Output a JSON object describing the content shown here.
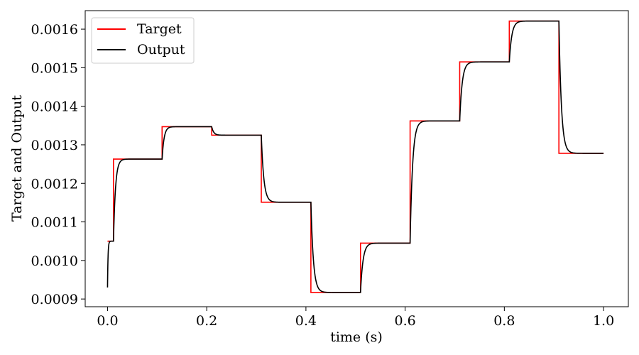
{
  "chart_data": {
    "type": "line",
    "xlabel": "time (s)",
    "ylabel": "Target and Output",
    "xlim": [
      -0.045,
      1.05
    ],
    "ylim": [
      0.00088,
      0.001648
    ],
    "xticks": [
      0.0,
      0.2,
      0.4,
      0.6,
      0.8,
      1.0
    ],
    "xtick_labels": [
      "0.0",
      "0.2",
      "0.4",
      "0.6",
      "0.8",
      "1.0"
    ],
    "yticks": [
      0.0009,
      0.001,
      0.0011,
      0.0012,
      0.0013,
      0.0014,
      0.0015,
      0.0016
    ],
    "ytick_labels": [
      "0.0009",
      "0.0010",
      "0.0011",
      "0.0012",
      "0.0013",
      "0.0014",
      "0.0015",
      "0.0016"
    ],
    "grid": false,
    "legend_position": "top-left",
    "series": [
      {
        "name": "Target",
        "color": "#ff0000",
        "style": "step",
        "x": [
          0.0,
          0.012,
          0.11,
          0.21,
          0.31,
          0.41,
          0.51,
          0.61,
          0.71,
          0.81,
          0.91,
          1.0
        ],
        "values": [
          0.00105,
          0.001263,
          0.001347,
          0.001325,
          0.001151,
          0.000917,
          0.001045,
          0.001362,
          0.001515,
          0.001621,
          0.001278,
          0.001278
        ]
      },
      {
        "name": "Output",
        "color": "#000000",
        "style": "response",
        "start": 0.00093,
        "steps": [
          {
            "t": 0.0,
            "v": 0.00105,
            "tau": 0.001
          },
          {
            "t": 0.012,
            "v": 0.001263,
            "tau": 0.004
          },
          {
            "t": 0.11,
            "v": 0.001347,
            "tau": 0.004
          },
          {
            "t": 0.21,
            "v": 0.001325,
            "tau": 0.004
          },
          {
            "t": 0.31,
            "v": 0.001151,
            "tau": 0.005
          },
          {
            "t": 0.41,
            "v": 0.000917,
            "tau": 0.005
          },
          {
            "t": 0.51,
            "v": 0.001045,
            "tau": 0.005
          },
          {
            "t": 0.61,
            "v": 0.001362,
            "tau": 0.005
          },
          {
            "t": 0.71,
            "v": 0.001515,
            "tau": 0.005
          },
          {
            "t": 0.81,
            "v": 0.001621,
            "tau": 0.005
          },
          {
            "t": 0.91,
            "v": 0.001278,
            "tau": 0.005
          }
        ],
        "end": 1.0
      }
    ]
  }
}
